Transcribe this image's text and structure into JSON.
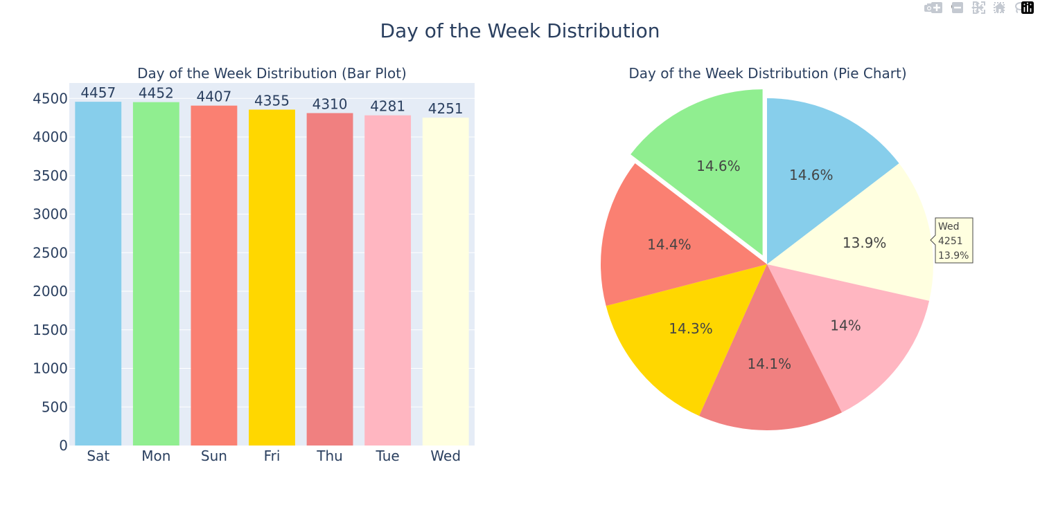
{
  "page": {
    "title": "Day of the Week Distribution"
  },
  "modebar": {
    "icons": [
      "camera-icon",
      "zoom-icon",
      "pan-icon",
      "box-select-icon",
      "lasso-icon",
      "zoom-in-icon",
      "zoom-out-icon",
      "autoscale-icon",
      "home-icon",
      "plotly-logo-icon"
    ]
  },
  "chart_data": [
    {
      "type": "bar",
      "title": "Day of the Week Distribution (Bar Plot)",
      "categories": [
        "Sat",
        "Mon",
        "Sun",
        "Fri",
        "Thu",
        "Tue",
        "Wed"
      ],
      "values": [
        4457,
        4452,
        4407,
        4355,
        4310,
        4281,
        4251
      ],
      "colors": [
        "#87CEEB",
        "#90EE90",
        "#FA8072",
        "#FFD700",
        "#F08080",
        "#FFB6C1",
        "#FFFFE0"
      ],
      "ylim": [
        0,
        4700
      ],
      "yticks": [
        0,
        500,
        1000,
        1500,
        2000,
        2500,
        3000,
        3500,
        4000,
        4500
      ],
      "plot_bgcolor": "#E5ECF6",
      "grid": true,
      "data_labels": true
    },
    {
      "type": "pie",
      "title": "Day of the Week Distribution (Pie Chart)",
      "order": [
        "Sat",
        "Wed",
        "Tue",
        "Thu",
        "Fri",
        "Sun",
        "Mon"
      ],
      "values": [
        4457,
        4251,
        4281,
        4310,
        4355,
        4407,
        4452
      ],
      "labels": [
        "14.6%",
        "13.9%",
        "14%",
        "14.1%",
        "14.3%",
        "14.4%",
        "14.6%"
      ],
      "colors": [
        "#87CEEB",
        "#FFFFE0",
        "#FFB6C1",
        "#F08080",
        "#FFD700",
        "#FA8072",
        "#90EE90"
      ],
      "pulled": "Mon",
      "direction": "clockwise",
      "hover": {
        "label": "Wed",
        "value": "4251",
        "percent": "13.9%"
      }
    }
  ]
}
